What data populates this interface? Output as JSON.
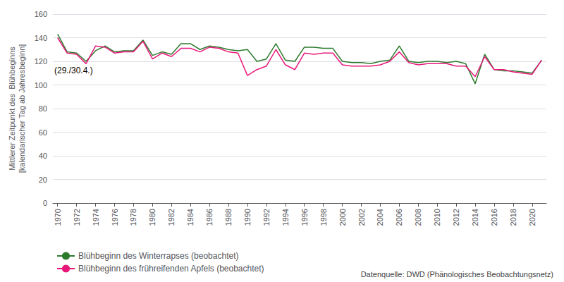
{
  "chart_data": {
    "type": "line",
    "x": [
      1970,
      1971,
      1972,
      1973,
      1974,
      1975,
      1976,
      1977,
      1978,
      1979,
      1980,
      1981,
      1982,
      1983,
      1984,
      1985,
      1986,
      1987,
      1988,
      1989,
      1990,
      1991,
      1992,
      1993,
      1994,
      1995,
      1996,
      1997,
      1998,
      1999,
      2000,
      2001,
      2002,
      2003,
      2004,
      2005,
      2006,
      2007,
      2008,
      2009,
      2010,
      2011,
      2012,
      2013,
      2014,
      2015,
      2016,
      2017,
      2018,
      2019,
      2020,
      2021
    ],
    "series": [
      {
        "name": "Blühbeginn des Winterrapses (beobachtet)",
        "color": "#2d7a2d",
        "values": [
          143,
          128,
          127,
          120,
          129,
          133,
          128,
          129,
          129,
          138,
          125,
          128,
          126,
          135,
          135,
          130,
          133,
          132,
          130,
          129,
          130,
          120,
          122,
          135,
          121,
          120,
          132,
          132,
          131,
          131,
          120,
          119,
          119,
          118,
          120,
          121,
          133,
          120,
          119,
          120,
          120,
          119,
          120,
          118,
          101,
          126,
          113,
          112,
          112,
          111,
          110,
          121
        ]
      },
      {
        "name": "Blühbeginn des frühreifenden Apfels (beobachtet)",
        "color": "#e8187a",
        "values": [
          140,
          127,
          126,
          118,
          133,
          132,
          127,
          128,
          128,
          137,
          122,
          127,
          124,
          131,
          131,
          128,
          132,
          131,
          128,
          127,
          108,
          113,
          116,
          130,
          117,
          113,
          127,
          126,
          127,
          127,
          117,
          116,
          116,
          116,
          117,
          120,
          128,
          119,
          117,
          118,
          118,
          118,
          116,
          116,
          107,
          124,
          113,
          113,
          111,
          110,
          109,
          121
        ]
      }
    ],
    "ylabel": "Mittlerer Zeitpunkt des  Blühbeginns\n[kalendarischer Tag ab Jahresbeginn]",
    "xlim": [
      1969.5,
      2021.5
    ],
    "xticks": [
      1970,
      1972,
      1974,
      1976,
      1978,
      1980,
      1982,
      1984,
      1986,
      1988,
      1990,
      1992,
      1994,
      1996,
      1998,
      2000,
      2002,
      2004,
      2006,
      2008,
      2010,
      2012,
      2014,
      2016,
      2018,
      2020
    ],
    "ylim": [
      0,
      160
    ],
    "yticks": [
      0,
      20,
      40,
      60,
      80,
      100,
      120,
      140,
      160
    ],
    "grid": "y",
    "legend": "bottom",
    "annotations": [
      {
        "text": "(29./30.4.)",
        "x": 1969.5,
        "y": 116
      }
    ],
    "source": "Datenquelle: DWD (Phänologisches Beobachtungsnetz)"
  }
}
